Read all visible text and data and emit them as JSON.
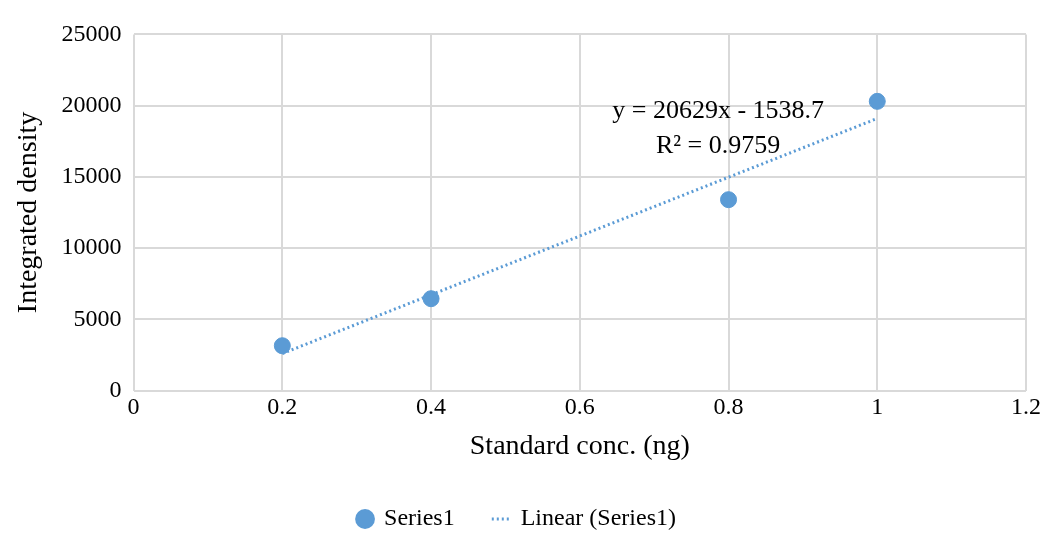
{
  "chart_data": {
    "type": "scatter",
    "xlabel": "Standard conc. (ng)",
    "ylabel": "Integrated density",
    "xlim": [
      0,
      1.2
    ],
    "xticks": [
      0,
      0.2,
      0.4,
      0.6,
      0.8,
      1,
      1.2
    ],
    "ylim": [
      0,
      25000
    ],
    "yticks": [
      0,
      5000,
      10000,
      15000,
      20000,
      25000
    ],
    "grid": true,
    "legend": "bottom",
    "series": [
      {
        "name": "Series1",
        "type": "scatter",
        "color": "#5b9bd5",
        "marker": "circle",
        "x": [
          0.2,
          0.4,
          0.8,
          1
        ],
        "values": [
          3150,
          6450,
          13400,
          20300
        ]
      },
      {
        "name": "Linear (Series1)",
        "type": "line",
        "color": "#5b9bd5",
        "marker": "none",
        "line_style": "dotted",
        "x": [
          0.2,
          1
        ],
        "values": [
          2600,
          19100
        ]
      }
    ],
    "annotations": [
      "y = 20629x - 1538.7",
      "R² = 0.9759"
    ]
  }
}
